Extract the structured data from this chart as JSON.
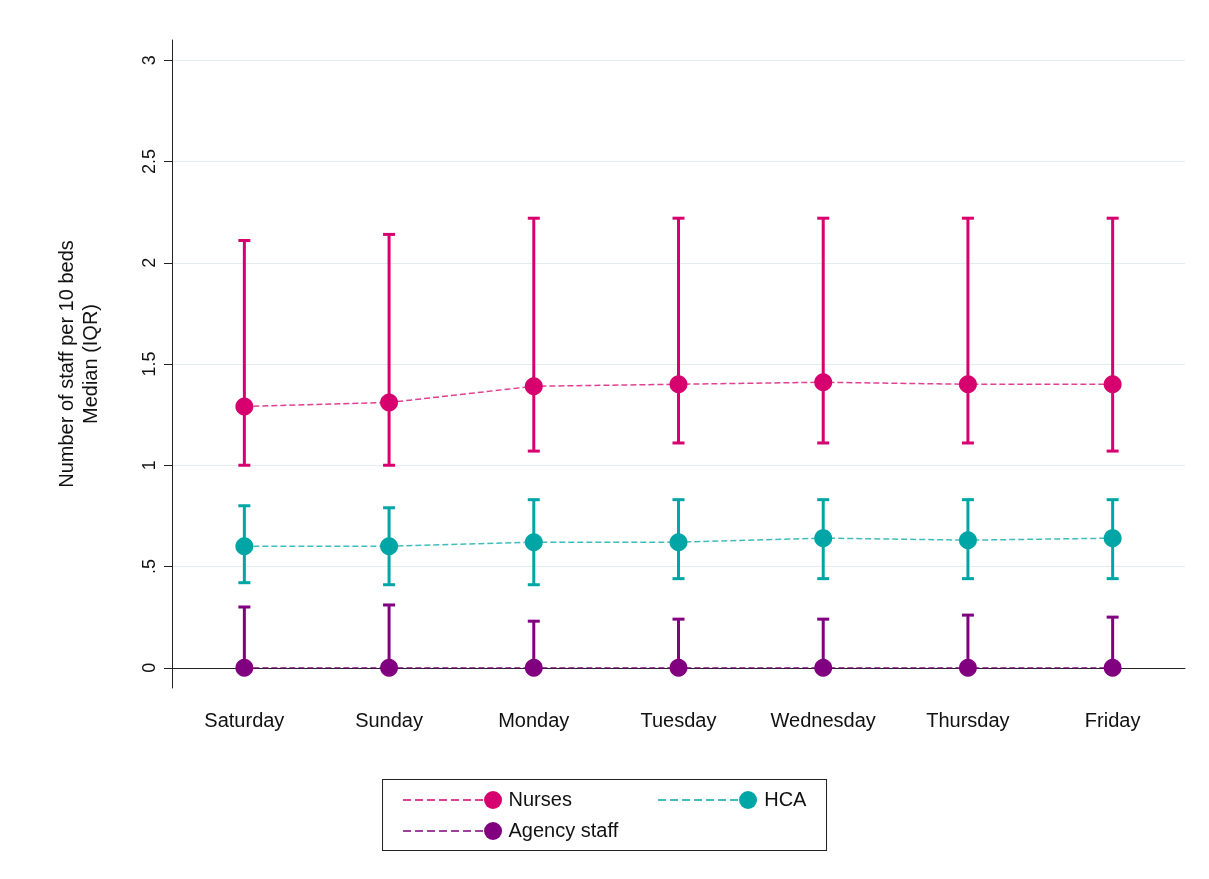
{
  "chart_data": {
    "type": "line",
    "ylabel": "Number of staff per 10 beds\nMedian (IQR)",
    "categories": [
      "Saturday",
      "Sunday",
      "Monday",
      "Tuesday",
      "Wednesday",
      "Thursday",
      "Friday"
    ],
    "series": [
      {
        "name": "Nurses",
        "color": "#d6006f",
        "values": [
          1.29,
          1.31,
          1.39,
          1.4,
          1.41,
          1.4,
          1.4
        ],
        "errors": [
          [
            1.0,
            2.11
          ],
          [
            1.0,
            2.14
          ],
          [
            1.07,
            2.22
          ],
          [
            1.11,
            2.22
          ],
          [
            1.11,
            2.22
          ],
          [
            1.11,
            2.22
          ],
          [
            1.07,
            2.22
          ]
        ]
      },
      {
        "name": "HCA",
        "color": "#00a5a5",
        "values": [
          0.6,
          0.6,
          0.62,
          0.62,
          0.64,
          0.63,
          0.64
        ],
        "errors": [
          [
            0.42,
            0.8
          ],
          [
            0.41,
            0.79
          ],
          [
            0.41,
            0.83
          ],
          [
            0.44,
            0.83
          ],
          [
            0.44,
            0.83
          ],
          [
            0.44,
            0.83
          ],
          [
            0.44,
            0.83
          ]
        ]
      },
      {
        "name": "Agency staff",
        "color": "#800080",
        "values": [
          0,
          0,
          0,
          0,
          0,
          0,
          0
        ],
        "errors": [
          [
            0,
            0.3
          ],
          [
            0,
            0.31
          ],
          [
            0,
            0.23
          ],
          [
            0,
            0.24
          ],
          [
            0,
            0.24
          ],
          [
            0,
            0.26
          ],
          [
            0,
            0.25
          ]
        ]
      }
    ],
    "ylim": [
      -0.1,
      3.1
    ],
    "yticks": [
      0,
      {
        "value": 0.5,
        "label": ".5"
      },
      1,
      1.5,
      2,
      2.5,
      3
    ],
    "grid": "y",
    "legend": "bottom",
    "marker": "circle",
    "line_style": "dashed"
  }
}
